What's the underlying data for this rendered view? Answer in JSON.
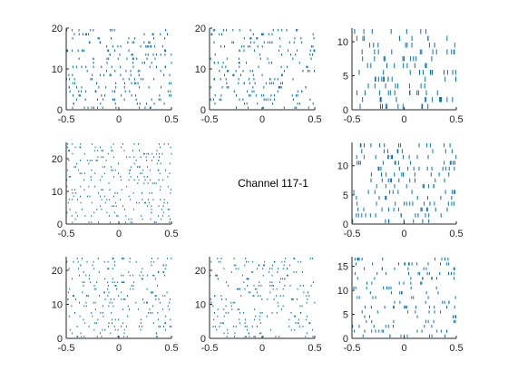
{
  "figure_title": "Channel 117-1",
  "colors": {
    "spike": "#0072BD",
    "axis": "#262626"
  },
  "chart_data": [
    {
      "type": "raster",
      "row": 0,
      "col": 0,
      "xlim": [
        -0.5,
        0.5
      ],
      "ylim": [
        0,
        20
      ],
      "trials": 20,
      "xticks": [
        -0.5,
        0,
        0.5
      ],
      "xtick_labels": [
        "-0.5",
        "0",
        "0.5"
      ],
      "yticks": [
        0,
        10,
        20
      ],
      "ytick_labels": [
        "0",
        "10",
        "20"
      ]
    },
    {
      "type": "raster",
      "row": 0,
      "col": 1,
      "xlim": [
        -0.5,
        0.5
      ],
      "ylim": [
        0,
        20
      ],
      "trials": 20,
      "xticks": [
        -0.5,
        0,
        0.5
      ],
      "xtick_labels": [
        "-0.5",
        "0",
        "0.5"
      ],
      "yticks": [
        0,
        10,
        20
      ],
      "ytick_labels": [
        "0",
        "10",
        "20"
      ]
    },
    {
      "type": "raster",
      "row": 0,
      "col": 2,
      "xlim": [
        -0.5,
        0.5
      ],
      "ylim": [
        0,
        12
      ],
      "trials": 12,
      "xticks": [
        -0.5,
        0,
        0.5
      ],
      "xtick_labels": [
        "-0.5",
        "0",
        "0.5"
      ],
      "yticks": [
        0,
        5,
        10
      ],
      "ytick_labels": [
        "0",
        "5",
        "10"
      ]
    },
    {
      "type": "raster",
      "row": 1,
      "col": 0,
      "xlim": [
        -0.5,
        0.5
      ],
      "ylim": [
        0,
        25
      ],
      "trials": 25,
      "xticks": [
        -0.5,
        0,
        0.5
      ],
      "xtick_labels": [
        "-0.5",
        "0",
        "0.5"
      ],
      "yticks": [
        0,
        10,
        20
      ],
      "ytick_labels": [
        "0",
        "10",
        "20"
      ]
    },
    {
      "type": "raster",
      "row": 1,
      "col": 2,
      "xlim": [
        -0.5,
        0.5
      ],
      "ylim": [
        0,
        14
      ],
      "trials": 14,
      "xticks": [
        -0.5,
        0,
        0.5
      ],
      "xtick_labels": [
        "-0.5",
        "0",
        "0.5"
      ],
      "yticks": [
        0,
        5,
        10
      ],
      "ytick_labels": [
        "0",
        "5",
        "10"
      ]
    },
    {
      "type": "raster",
      "row": 2,
      "col": 0,
      "xlim": [
        -0.5,
        0.5
      ],
      "ylim": [
        0,
        24
      ],
      "trials": 24,
      "xticks": [
        -0.5,
        0,
        0.5
      ],
      "xtick_labels": [
        "-0.5",
        "0",
        "0.5"
      ],
      "yticks": [
        0,
        10,
        20
      ],
      "ytick_labels": [
        "0",
        "10",
        "20"
      ]
    },
    {
      "type": "raster",
      "row": 2,
      "col": 1,
      "xlim": [
        -0.5,
        0.5
      ],
      "ylim": [
        0,
        24
      ],
      "trials": 24,
      "xticks": [
        -0.5,
        0,
        0.5
      ],
      "xtick_labels": [
        "-0.5",
        "0",
        "0.5"
      ],
      "yticks": [
        0,
        10,
        20
      ],
      "ytick_labels": [
        "0",
        "10",
        "20"
      ]
    },
    {
      "type": "raster",
      "row": 2,
      "col": 2,
      "xlim": [
        -0.5,
        0.5
      ],
      "ylim": [
        0,
        17
      ],
      "trials": 17,
      "xticks": [
        -0.5,
        0,
        0.5
      ],
      "xtick_labels": [
        "-0.5",
        "0",
        "0.5"
      ],
      "yticks": [
        0,
        5,
        10,
        15
      ],
      "ytick_labels": [
        "0",
        "5",
        "10",
        "15"
      ]
    }
  ]
}
